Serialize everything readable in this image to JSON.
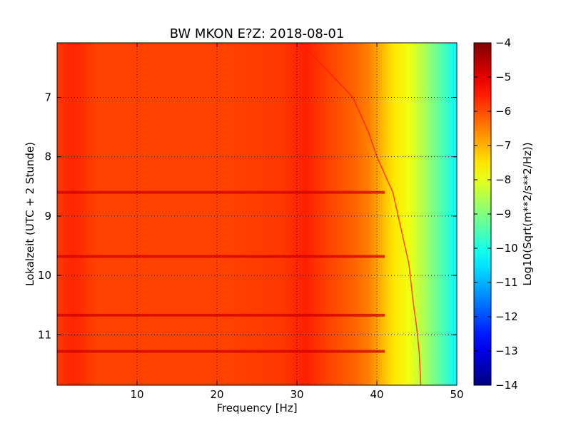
{
  "chart_data": {
    "type": "heatmap",
    "title": "BW MKON E?Z: 2018-08-01",
    "xlabel": "Frequency [Hz]",
    "ylabel": "Lokalzeit (UTC + 2 Stunde)",
    "xlim": [
      0,
      50
    ],
    "ylim": [
      11.85,
      6.08
    ],
    "y_axis_inverted": true,
    "x_ticks": [
      10,
      20,
      30,
      40,
      50
    ],
    "x_tick_labels": [
      "10",
      "20",
      "30",
      "40",
      "50"
    ],
    "y_ticks": [
      7,
      8,
      9,
      10,
      11
    ],
    "y_tick_labels": [
      "7",
      "8",
      "9",
      "10",
      "11"
    ],
    "grid": true,
    "grid_style": "dotted",
    "colormap": "jet",
    "colorbar": {
      "label": "Log10(Sqrt(m**2/s**2/Hz))",
      "range": [
        -14,
        -4
      ],
      "ticks": [
        -4,
        -5,
        -6,
        -7,
        -8,
        -9,
        -10,
        -11,
        -12,
        -13,
        -14
      ],
      "tick_labels": [
        "−4",
        "−5",
        "−6",
        "−7",
        "−8",
        "−9",
        "−10",
        "−11",
        "−12",
        "−13",
        "−14"
      ]
    },
    "spectrum_profile": {
      "frequency_hz": [
        0,
        2,
        5,
        10,
        20,
        28,
        31,
        34,
        37,
        39,
        40.5,
        42,
        44,
        46,
        48,
        50
      ],
      "log10_amplitude": [
        -5.8,
        -5.6,
        -5.9,
        -5.9,
        -5.9,
        -5.8,
        -5.55,
        -5.9,
        -6.2,
        -6.5,
        -7.0,
        -7.5,
        -7.9,
        -8.6,
        -9.4,
        -10.3
      ]
    },
    "strong_bands_hours": [
      8.6,
      9.68,
      10.67,
      11.28
    ],
    "drift_line": {
      "time_h": [
        6.08,
        7.0,
        7.6,
        8.0,
        8.6,
        9.2,
        9.8,
        10.4,
        10.9,
        11.3,
        11.85
      ],
      "frequency_hz": [
        30.5,
        37.0,
        39.0,
        40.0,
        42.0,
        43.0,
        44.0,
        44.5,
        45.0,
        45.3,
        45.5
      ]
    }
  }
}
